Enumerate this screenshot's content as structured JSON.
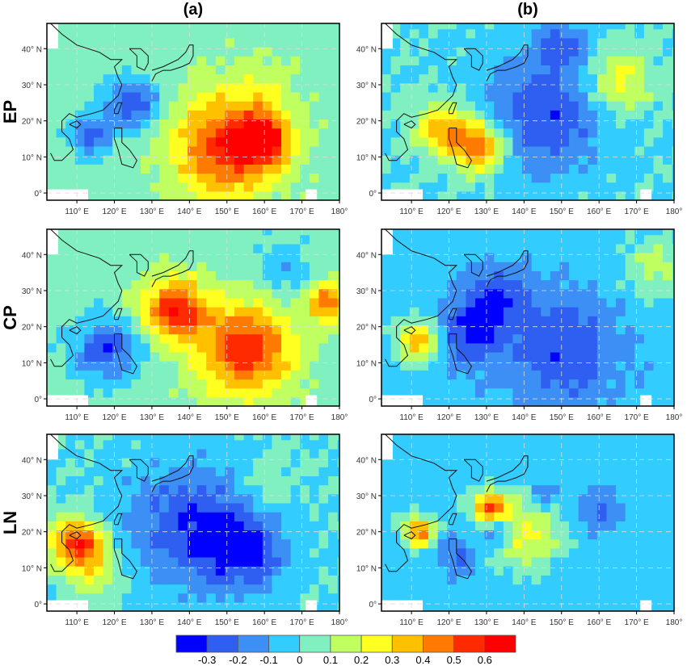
{
  "chart_data": {
    "type": "heatmap",
    "columns": [
      "(a)",
      "(b)"
    ],
    "rows": [
      "EP",
      "CP",
      "LN"
    ],
    "x_ticks": [
      "110° E",
      "120° E",
      "130° E",
      "140° E",
      "150° E",
      "160° E",
      "170° E",
      "180°"
    ],
    "y_ticks": [
      "0°",
      "10° N",
      "20° N",
      "30° N",
      "40° N"
    ],
    "xlim": [
      102,
      180
    ],
    "ylim": [
      -2,
      47
    ],
    "grid": true,
    "colorbar": {
      "ticks": [
        "-0.3",
        "-0.2",
        "-0.1",
        "0",
        "0.1",
        "0.2",
        "0.3",
        "0.4",
        "0.5",
        "0.6"
      ],
      "colors": [
        "#0000ff",
        "#2f5ff0",
        "#3c8ff5",
        "#33ccff",
        "#80f0c0",
        "#c0ff60",
        "#ffff20",
        "#ffc000",
        "#ff7a00",
        "#ff2a00",
        "#ff0000"
      ]
    },
    "panels": [
      {
        "row": "EP",
        "col": "(a)",
        "base": 0.05,
        "features": [
          {
            "lon": 150,
            "lat": 13,
            "value": 0.6,
            "radius": 10
          },
          {
            "lon": 160,
            "lat": 15,
            "value": 0.5,
            "radius": 5
          },
          {
            "lon": 125,
            "lat": 25,
            "value": -0.3,
            "radius": 5
          },
          {
            "lon": 114,
            "lat": 16,
            "value": -0.25,
            "radius": 4
          },
          {
            "lon": 160,
            "lat": 30,
            "value": 0.15,
            "radius": 6
          }
        ]
      },
      {
        "row": "EP",
        "col": "(b)",
        "base": 0.0,
        "features": [
          {
            "lon": 128,
            "lat": 13,
            "value": 0.55,
            "radius": 5
          },
          {
            "lon": 118,
            "lat": 18,
            "value": 0.4,
            "radius": 5
          },
          {
            "lon": 145,
            "lat": 22,
            "value": -0.3,
            "radius": 12
          },
          {
            "lon": 165,
            "lat": 31,
            "value": 0.3,
            "radius": 6
          },
          {
            "lon": 150,
            "lat": 42,
            "value": -0.2,
            "radius": 5
          }
        ]
      },
      {
        "row": "CP",
        "col": "(a)",
        "base": 0.05,
        "features": [
          {
            "lon": 136,
            "lat": 25,
            "value": 0.6,
            "radius": 6
          },
          {
            "lon": 155,
            "lat": 14,
            "value": 0.6,
            "radius": 9
          },
          {
            "lon": 177,
            "lat": 27,
            "value": 0.5,
            "radius": 4
          },
          {
            "lon": 118,
            "lat": 14,
            "value": -0.3,
            "radius": 6
          },
          {
            "lon": 165,
            "lat": 35,
            "value": -0.1,
            "radius": 6
          }
        ]
      },
      {
        "row": "CP",
        "col": "(b)",
        "base": -0.05,
        "features": [
          {
            "lon": 112,
            "lat": 16,
            "value": 0.4,
            "radius": 4
          },
          {
            "lon": 150,
            "lat": 14,
            "value": -0.3,
            "radius": 11
          },
          {
            "lon": 132,
            "lat": 28,
            "value": -0.3,
            "radius": 6
          },
          {
            "lon": 125,
            "lat": 18,
            "value": -0.3,
            "radius": 6
          },
          {
            "lon": 175,
            "lat": 37,
            "value": 0.15,
            "radius": 6
          }
        ]
      },
      {
        "row": "LN",
        "col": "(a)",
        "base": 0.0,
        "features": [
          {
            "lon": 110,
            "lat": 17,
            "value": 0.6,
            "radius": 5
          },
          {
            "lon": 140,
            "lat": 22,
            "value": -0.3,
            "radius": 12
          },
          {
            "lon": 155,
            "lat": 15,
            "value": -0.3,
            "radius": 8
          },
          {
            "lon": 115,
            "lat": 9,
            "value": 0.2,
            "radius": 5
          },
          {
            "lon": 160,
            "lat": 32,
            "value": 0.1,
            "radius": 6
          }
        ]
      },
      {
        "row": "LN",
        "col": "(b)",
        "base": -0.05,
        "features": [
          {
            "lon": 131,
            "lat": 27,
            "value": 0.55,
            "radius": 3
          },
          {
            "lon": 112,
            "lat": 20,
            "value": 0.5,
            "radius": 3
          },
          {
            "lon": 140,
            "lat": 20,
            "value": 0.25,
            "radius": 7
          },
          {
            "lon": 122,
            "lat": 13,
            "value": -0.25,
            "radius": 4
          },
          {
            "lon": 160,
            "lat": 26,
            "value": -0.25,
            "radius": 4
          },
          {
            "lon": 133,
            "lat": 20,
            "value": -0.3,
            "radius": 3
          },
          {
            "lon": 145,
            "lat": 30,
            "value": -0.2,
            "radius": 3
          }
        ]
      }
    ]
  }
}
